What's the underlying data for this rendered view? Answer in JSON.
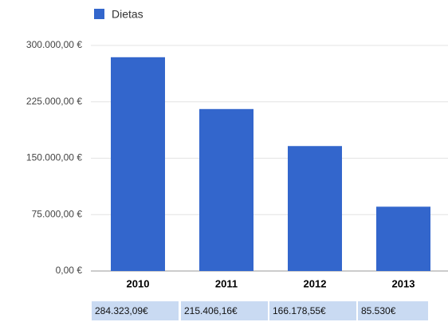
{
  "chart_data": {
    "type": "bar",
    "categories": [
      "2010",
      "2011",
      "2012",
      "2013"
    ],
    "series": [
      {
        "name": "Dietas",
        "color": "#3366cc",
        "values": [
          284323.09,
          215406.16,
          166178.55,
          85530
        ]
      }
    ],
    "value_labels": [
      "284.323,09€",
      "215.406,16€",
      "166.178,55€",
      "85.530€"
    ],
    "ylim": [
      0,
      300000
    ],
    "yticks": [
      {
        "value": 0,
        "label": "0,00 €"
      },
      {
        "value": 75000,
        "label": "75.000,00 €"
      },
      {
        "value": 150000,
        "label": "150.000,00 €"
      },
      {
        "value": 225000,
        "label": "225.000,00 €"
      },
      {
        "value": 300000,
        "label": "300.000,00 €"
      }
    ],
    "grid": true
  }
}
